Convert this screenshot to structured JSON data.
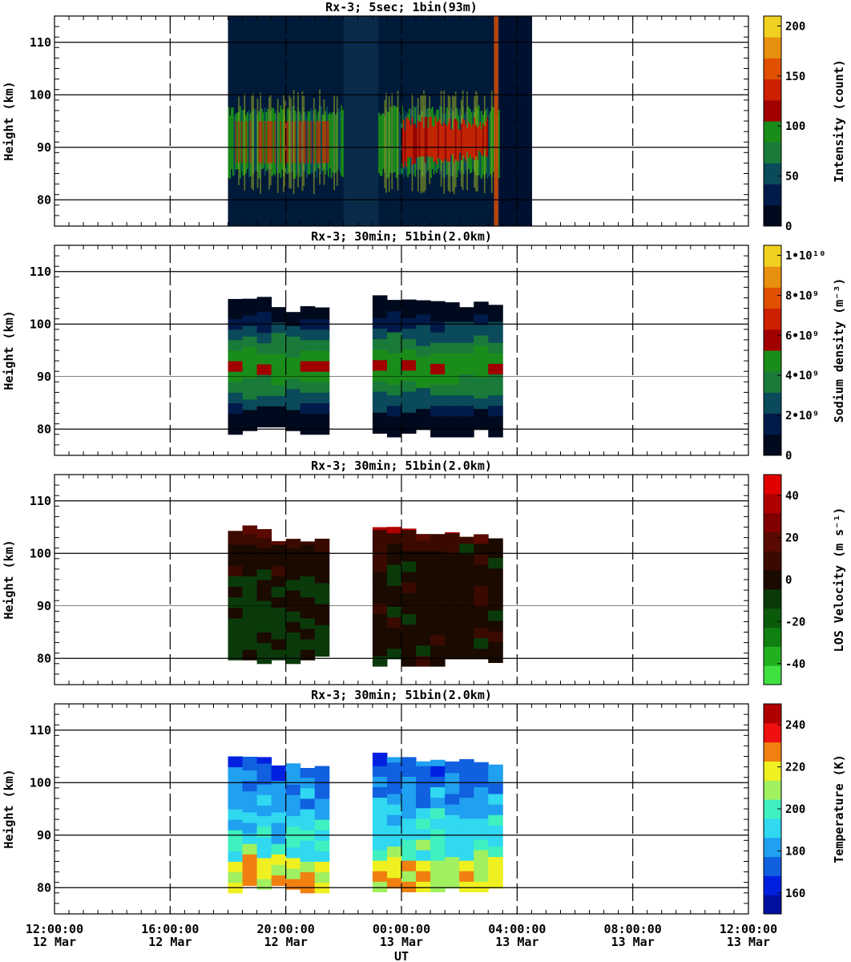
{
  "xaxis": {
    "label": "UT",
    "start_hours": 0,
    "end_hours": 24,
    "tick_times": [
      "12:00:00",
      "16:00:00",
      "20:00:00",
      "00:00:00",
      "04:00:00",
      "08:00:00",
      "12:00:00"
    ],
    "tick_dates": [
      "12 Mar",
      "12 Mar",
      "12 Mar",
      "13 Mar",
      "13 Mar",
      "13 Mar",
      "13 Mar"
    ]
  },
  "chart_data": [
    {
      "type": "heatmap",
      "title": "Rx-3;  5sec; 1bin(93m)",
      "ylabel": "Height (km)",
      "ylim": [
        75,
        115
      ],
      "yticks": [
        80,
        90,
        100,
        110
      ],
      "grid": true,
      "colorbar": {
        "label": "Intensity (count)",
        "range": [
          0,
          210
        ],
        "ticks": [
          "0",
          "50",
          "100",
          "150",
          "200"
        ],
        "tick_values": [
          0,
          50,
          100,
          150,
          200
        ],
        "colors": [
          "#000a1e",
          "#001a4a",
          "#0a4a5a",
          "#1a7a3a",
          "#1a8c1a",
          "#a00000",
          "#cc2000",
          "#e05000",
          "#e89010",
          "#f0d020"
        ]
      },
      "data_span_hours": [
        6.0,
        16.5
      ],
      "layers": [
        {
          "hours": [
            6.0,
            16.3
          ],
          "y": [
            85,
            96
          ],
          "level": "green, 70-100"
        },
        {
          "hours": [
            12.0,
            15.0
          ],
          "y": [
            86,
            96
          ],
          "level": "red, 100-150"
        }
      ]
    },
    {
      "type": "heatmap",
      "title": "Rx-3; 30min; 51bin(2.0km)",
      "ylabel": "Height (km)",
      "ylim": [
        75,
        115
      ],
      "yticks": [
        80,
        90,
        100,
        110
      ],
      "grid": true,
      "colorbar": {
        "label": "Sodium density (m⁻³)",
        "range": [
          0,
          10500000000.0
        ],
        "ticks": [
          "0",
          "2•10⁹",
          "4•10⁹",
          "6•10⁹",
          "8•10⁹",
          "1•10¹⁰"
        ],
        "tick_values": [
          0,
          2000000000.0,
          4000000000.0,
          6000000000.0,
          8000000000.0,
          10000000000.0
        ],
        "colors": [
          "#000a1e",
          "#001a4a",
          "#0a4a5a",
          "#1a7a3a",
          "#1a8c1a",
          "#a00000",
          "#cc2000",
          "#e05000",
          "#e89010",
          "#f0d020"
        ]
      },
      "data_span_hours": [
        [
          6.0,
          9.5
        ],
        [
          11.0,
          15.5
        ]
      ]
    },
    {
      "type": "heatmap",
      "title": "Rx-3; 30min; 51bin(2.0km)",
      "ylabel": "Height (km)",
      "ylim": [
        75,
        115
      ],
      "yticks": [
        80,
        90,
        100,
        110
      ],
      "grid": true,
      "colorbar": {
        "label": "LOS Velocity (m s⁻¹)",
        "range": [
          -50,
          50
        ],
        "ticks": [
          "-40",
          "-20",
          "0",
          "20",
          "40"
        ],
        "tick_values": [
          -40,
          -20,
          0,
          20,
          40
        ],
        "colors": [
          "#40e040",
          "#20b020",
          "#108010",
          "#0a5a0a",
          "#0a3a0a",
          "#1a0a00",
          "#3a0a00",
          "#5a0a00",
          "#800000",
          "#b00000",
          "#e00000"
        ]
      },
      "data_span_hours": [
        [
          6.0,
          9.5
        ],
        [
          11.0,
          15.5
        ]
      ]
    },
    {
      "type": "heatmap",
      "title": "Rx-3; 30min; 51bin(2.0km)",
      "ylabel": "Height (km)",
      "ylim": [
        75,
        115
      ],
      "yticks": [
        80,
        90,
        100,
        110
      ],
      "grid": true,
      "colorbar": {
        "label": "Temperature (K)",
        "range": [
          150,
          250
        ],
        "ticks": [
          "160",
          "180",
          "200",
          "220",
          "240"
        ],
        "tick_values": [
          160,
          180,
          200,
          220,
          240
        ],
        "colors": [
          "#0010a0",
          "#0020e0",
          "#1060e0",
          "#20a0f0",
          "#30d8f0",
          "#40f0c0",
          "#a0f060",
          "#f0f020",
          "#f08010",
          "#f01010",
          "#b00000"
        ]
      },
      "data_span_hours": [
        [
          6.0,
          9.5
        ],
        [
          11.0,
          15.5
        ]
      ]
    }
  ]
}
